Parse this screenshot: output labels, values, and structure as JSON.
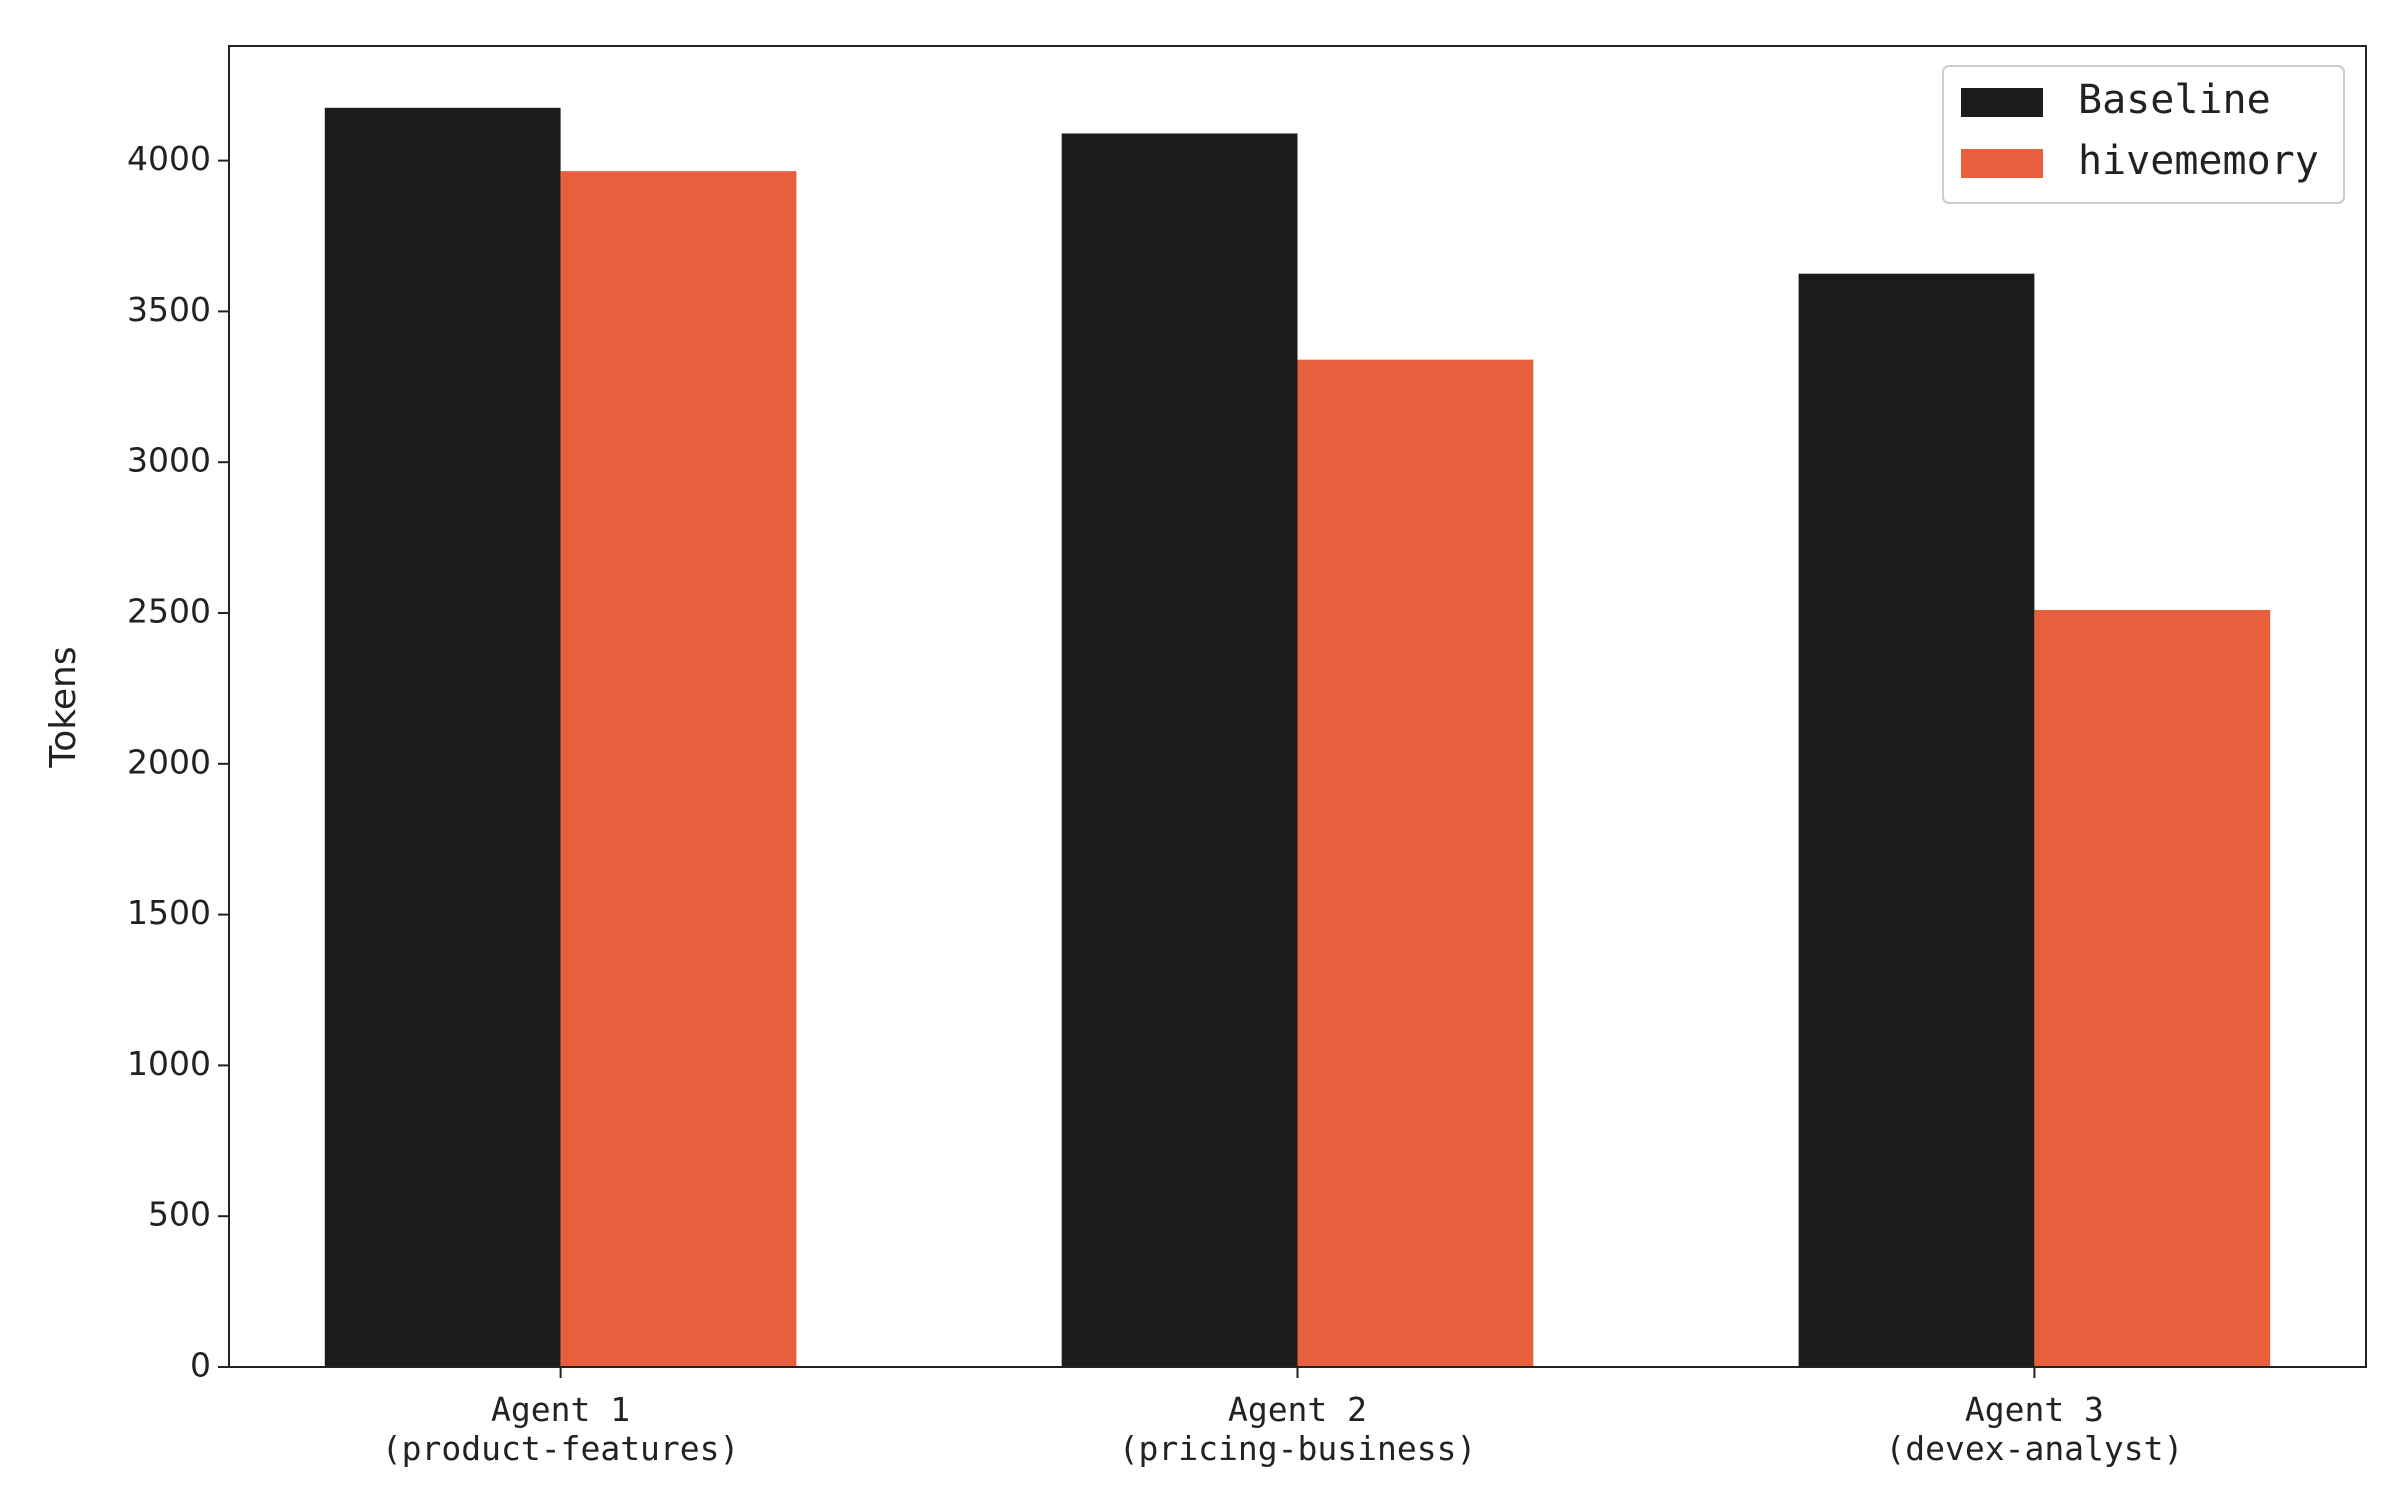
{
  "chart_data": {
    "type": "bar",
    "y_label": "Tokens",
    "categories": [
      "Agent 1\n(product-features)",
      "Agent 2\n(pricing-business)",
      "Agent 3\n(devex-analyst)"
    ],
    "series": [
      {
        "name": "Baseline",
        "color": "#1c1c1c",
        "values": [
          4175,
          4090,
          3625
        ]
      },
      {
        "name": "hivememory",
        "color": "#e85f3d",
        "values": [
          3965,
          3340,
          2510
        ]
      }
    ],
    "ylim": [
      0,
      4380
    ],
    "yticks": [
      0,
      500,
      1000,
      1500,
      2000,
      2500,
      3000,
      3500,
      4000
    ],
    "grid": false,
    "legend": "upper right"
  }
}
